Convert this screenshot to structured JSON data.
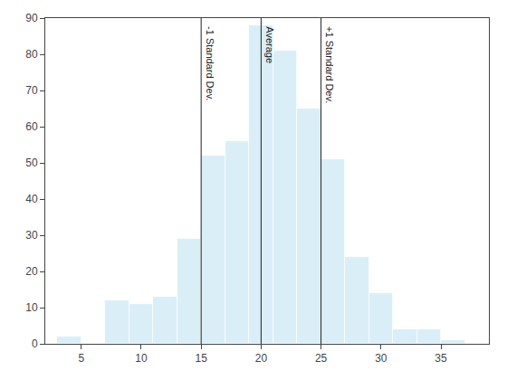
{
  "chart_data": {
    "type": "histogram",
    "bins": [
      3,
      5,
      7,
      9,
      11,
      13,
      15,
      17,
      19,
      21,
      23,
      25,
      27,
      29,
      31,
      33,
      35,
      37,
      39
    ],
    "values": [
      2,
      0,
      12,
      11,
      13,
      29,
      52,
      56,
      88,
      81,
      65,
      51,
      24,
      14,
      4,
      4,
      1,
      0
    ],
    "color": "#daeef7",
    "xlim": [
      2,
      39
    ],
    "ylim": [
      0,
      90
    ],
    "xticks": [
      5,
      10,
      15,
      20,
      25,
      30,
      35
    ],
    "yticks": [
      0,
      10,
      20,
      30,
      40,
      50,
      60,
      70,
      80,
      90
    ],
    "grid": false,
    "annotations": [
      {
        "x": 15,
        "text": "-1 Standard Dev.",
        "color": "#222222"
      },
      {
        "x": 20,
        "text": "Average",
        "color": "#222222"
      },
      {
        "x": 25,
        "text": "+1 Standard Dev.",
        "color": "#222222"
      }
    ]
  }
}
